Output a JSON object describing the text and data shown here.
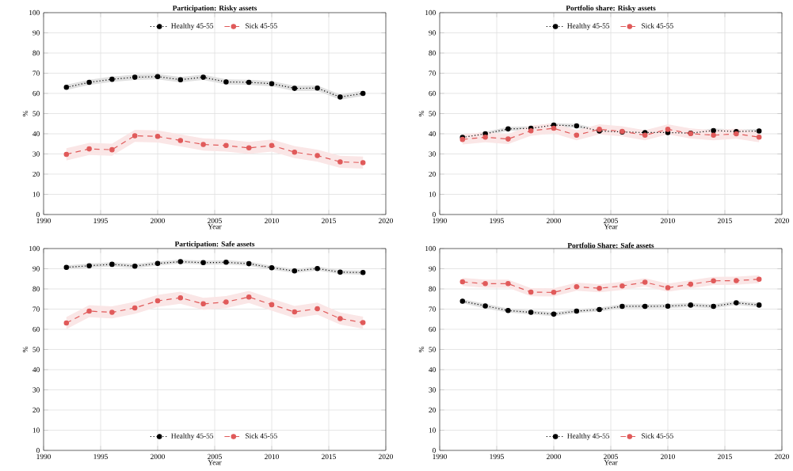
{
  "chart_data": [
    {
      "type": "line",
      "title": "Participation: Risky assets",
      "xlabel": "Year",
      "ylabel": "%",
      "x": [
        1992,
        1994,
        1996,
        1998,
        2000,
        2002,
        2004,
        2006,
        2008,
        2010,
        2012,
        2014,
        2016,
        2018
      ],
      "xlim": [
        1990,
        2020
      ],
      "ylim": [
        0,
        100
      ],
      "xticks": [
        1990,
        1995,
        2000,
        2005,
        2010,
        2015,
        2020
      ],
      "yticks": [
        0,
        10,
        20,
        30,
        40,
        50,
        60,
        70,
        80,
        90,
        100
      ],
      "grid": true,
      "legend": "top",
      "marker": "circle",
      "series": [
        {
          "name": "Healthy 45-55",
          "color": "#000000",
          "line_style": "dotted",
          "values": [
            63,
            65.5,
            67,
            68,
            68.3,
            66.8,
            68,
            65.7,
            65.5,
            64.8,
            62.5,
            62.6,
            58.2,
            60
          ],
          "lower": [
            61.7,
            64.2,
            65.7,
            66.7,
            67,
            65.5,
            66.7,
            64.4,
            64.2,
            63.5,
            61.2,
            61.3,
            56.9,
            58.7
          ],
          "upper": [
            64.3,
            66.8,
            68.3,
            69.3,
            69.6,
            68.1,
            69.3,
            67,
            66.8,
            66.1,
            63.8,
            63.9,
            59.5,
            61.3
          ]
        },
        {
          "name": "Sick 45-55",
          "color": "#e05a5a",
          "line_style": "dashed",
          "values": [
            29.8,
            32.5,
            32.1,
            39,
            38.7,
            36.7,
            34.7,
            34.2,
            33,
            34.2,
            30.9,
            29.2,
            26.1,
            25.7
          ],
          "lower": [
            26.8,
            29.5,
            29.1,
            36,
            35.7,
            33.7,
            31.7,
            31.2,
            30,
            31.2,
            27.9,
            26.2,
            23.1,
            22.7
          ],
          "upper": [
            32.8,
            35.5,
            35.1,
            42,
            41.7,
            39.7,
            37.7,
            37.2,
            36,
            37.2,
            33.9,
            32.2,
            29.1,
            28.7
          ]
        }
      ]
    },
    {
      "type": "line",
      "title": "Portfolio share: Risky assets",
      "xlabel": "Year",
      "ylabel": "%",
      "x": [
        1992,
        1994,
        1996,
        1998,
        2000,
        2002,
        2004,
        2006,
        2008,
        2010,
        2012,
        2014,
        2016,
        2018
      ],
      "xlim": [
        1990,
        2020
      ],
      "ylim": [
        0,
        100
      ],
      "xticks": [
        1990,
        1995,
        2000,
        2005,
        2010,
        2015,
        2020
      ],
      "yticks": [
        0,
        10,
        20,
        30,
        40,
        50,
        60,
        70,
        80,
        90,
        100
      ],
      "grid": true,
      "legend": "top",
      "marker": "circle",
      "series": [
        {
          "name": "Healthy 45-55",
          "color": "#000000",
          "line_style": "dotted",
          "values": [
            38.2,
            40,
            42.4,
            42.7,
            44.3,
            43.9,
            41.4,
            40.9,
            40.6,
            40.6,
            40.3,
            41.6,
            41.1,
            41.4
          ],
          "lower": [
            37.2,
            39,
            41.4,
            41.7,
            43.3,
            42.9,
            40.4,
            39.9,
            39.6,
            39.6,
            39.3,
            40.6,
            40.1,
            40.4
          ],
          "upper": [
            39.2,
            41,
            43.4,
            43.7,
            45.3,
            44.9,
            42.4,
            41.9,
            41.6,
            41.6,
            41.3,
            42.6,
            42.1,
            42.4
          ]
        },
        {
          "name": "Sick 45-55",
          "color": "#e05a5a",
          "line_style": "dashed",
          "values": [
            37.2,
            38.3,
            37.4,
            41.5,
            42.7,
            39.3,
            42.2,
            41.2,
            39.3,
            42.2,
            40.1,
            39.3,
            40,
            38.3
          ],
          "lower": [
            34.7,
            35.8,
            34.9,
            39,
            40.2,
            36.8,
            39.7,
            38.7,
            36.8,
            39.7,
            37.6,
            36.8,
            37.5,
            35.8
          ],
          "upper": [
            39.7,
            40.8,
            39.9,
            44,
            45.2,
            41.8,
            44.7,
            43.7,
            41.8,
            44.7,
            42.6,
            41.8,
            42.5,
            40.8
          ]
        }
      ]
    },
    {
      "type": "line",
      "title": "Participation: Safe assets",
      "xlabel": "Year",
      "ylabel": "%",
      "x": [
        1992,
        1994,
        1996,
        1998,
        2000,
        2002,
        2004,
        2006,
        2008,
        2010,
        2012,
        2014,
        2016,
        2018
      ],
      "xlim": [
        1990,
        2020
      ],
      "ylim": [
        0,
        100
      ],
      "xticks": [
        1990,
        1995,
        2000,
        2005,
        2010,
        2015,
        2020
      ],
      "yticks": [
        0,
        10,
        20,
        30,
        40,
        50,
        60,
        70,
        80,
        90,
        100
      ],
      "grid": true,
      "legend": "bottom",
      "marker": "circle",
      "series": [
        {
          "name": "Healthy 45-55",
          "color": "#000000",
          "line_style": "dotted",
          "values": [
            90.7,
            91.5,
            92.2,
            91.3,
            92.6,
            93.5,
            93,
            93.2,
            92.5,
            90.5,
            88.9,
            90.1,
            88.3,
            88.1
          ],
          "lower": [
            89.7,
            90.5,
            91.2,
            90.3,
            91.6,
            92.5,
            92,
            92.2,
            91.5,
            89.5,
            87.9,
            89.1,
            87.3,
            87.1
          ],
          "upper": [
            91.7,
            92.5,
            93.2,
            92.3,
            93.6,
            94.5,
            94,
            94.2,
            93.5,
            91.5,
            89.9,
            91.1,
            89.3,
            89.1
          ]
        },
        {
          "name": "Sick 45-55",
          "color": "#e05a5a",
          "line_style": "dashed",
          "values": [
            63.1,
            69,
            68.4,
            70.6,
            74.1,
            75.6,
            72.6,
            73.5,
            76,
            72.2,
            68.6,
            70.2,
            65.3,
            63.3
          ],
          "lower": [
            60.1,
            66,
            65.4,
            67.6,
            71.1,
            72.6,
            69.6,
            70.5,
            73,
            69.2,
            65.6,
            67.2,
            62.3,
            60.3
          ],
          "upper": [
            66.1,
            72,
            71.4,
            73.6,
            77.1,
            78.6,
            75.6,
            76.5,
            79,
            75.2,
            71.6,
            73.2,
            68.3,
            66.3
          ]
        }
      ]
    },
    {
      "type": "line",
      "title": "Portfolio Share: Safe assets",
      "xlabel": "Year",
      "ylabel": "%",
      "x": [
        1992,
        1994,
        1996,
        1998,
        2000,
        2002,
        2004,
        2006,
        2008,
        2010,
        2012,
        2014,
        2016,
        2018
      ],
      "xlim": [
        1990,
        2020
      ],
      "ylim": [
        0,
        100
      ],
      "xticks": [
        1990,
        1995,
        2000,
        2005,
        2010,
        2015,
        2020
      ],
      "yticks": [
        0,
        10,
        20,
        30,
        40,
        50,
        60,
        70,
        80,
        90,
        100
      ],
      "grid": true,
      "legend": "bottom",
      "marker": "circle",
      "series": [
        {
          "name": "Healthy 45-55",
          "color": "#000000",
          "line_style": "dotted",
          "values": [
            73.9,
            71.6,
            69.3,
            68.4,
            67.5,
            69,
            69.8,
            71.4,
            71.4,
            71.5,
            72,
            71.4,
            73.1,
            72
          ],
          "lower": [
            72.9,
            70.3,
            68.3,
            67.4,
            66.5,
            68,
            68.8,
            70.4,
            70.4,
            70.5,
            71,
            70.4,
            72.1,
            71
          ],
          "upper": [
            74.9,
            72.6,
            70.3,
            69.4,
            68.5,
            70,
            70.8,
            72.4,
            72.4,
            72.5,
            73,
            72.4,
            74.1,
            73
          ]
        },
        {
          "name": "Sick 45-55",
          "color": "#e05a5a",
          "line_style": "dashed",
          "values": [
            83.5,
            82.6,
            82.6,
            78.4,
            78.3,
            81.1,
            80.3,
            81.5,
            83.3,
            80.6,
            82.3,
            84,
            84.1,
            84.8
          ],
          "lower": [
            81.5,
            80.6,
            80.6,
            76.4,
            76.3,
            79.1,
            78.3,
            79.5,
            81.3,
            78.6,
            80.3,
            82,
            82.1,
            82.8
          ],
          "upper": [
            85.5,
            84.6,
            84.6,
            80.4,
            80.3,
            83.1,
            82.3,
            83.5,
            85.3,
            82.6,
            84.3,
            86,
            86.1,
            86.8
          ]
        }
      ]
    }
  ]
}
